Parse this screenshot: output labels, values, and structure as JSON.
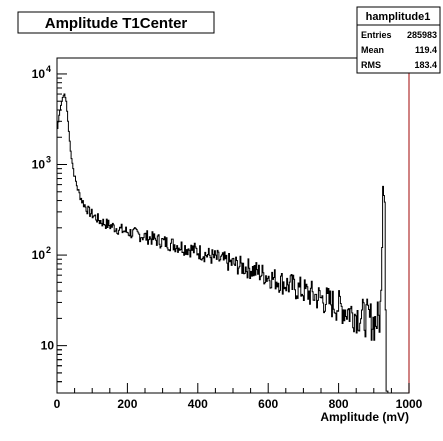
{
  "colors": {
    "background": "#ffffff",
    "frame": "#000000",
    "histogram": "#000000",
    "axis_frame_right": "#b03030"
  },
  "chart_data": {
    "type": "line",
    "title": "Amplitude T1Center",
    "xlabel": "Amplitude (mV)",
    "ylabel": "",
    "xlim": [
      0,
      1000
    ],
    "ylim": [
      3,
      15000
    ],
    "y_scale": "log",
    "grid": false,
    "legend": "none",
    "x_ticks": [
      {
        "value": 0,
        "label": "0"
      },
      {
        "value": 200,
        "label": "200"
      },
      {
        "value": 400,
        "label": "400"
      },
      {
        "value": 600,
        "label": "600"
      },
      {
        "value": 800,
        "label": "800"
      },
      {
        "value": 1000,
        "label": "1000"
      }
    ],
    "y_ticks": [
      {
        "value": 10,
        "base": "10",
        "exp": ""
      },
      {
        "value": 100,
        "base": "10",
        "exp": "2"
      },
      {
        "value": 1000,
        "base": "10",
        "exp": "3"
      },
      {
        "value": 10000,
        "base": "10",
        "exp": "4"
      }
    ],
    "stats_box": {
      "name": "hamplitude1",
      "rows": [
        {
          "label": "Entries",
          "value": "285983"
        },
        {
          "label": "Mean",
          "value": "119.4"
        },
        {
          "label": "RMS",
          "value": "183.4"
        }
      ]
    },
    "series": [
      {
        "x": [
          0,
          5,
          10,
          15,
          20,
          25,
          30,
          35,
          40,
          45,
          50,
          60,
          70,
          80,
          90,
          100,
          120,
          140,
          160,
          180,
          200,
          250,
          300,
          350,
          400,
          450,
          500,
          550,
          600,
          650,
          700,
          750,
          800,
          850,
          880,
          900,
          915,
          920,
          925,
          930,
          935,
          940
        ],
        "y": [
          2500,
          3500,
          4500,
          5500,
          6000,
          5000,
          3000,
          1800,
          1200,
          900,
          700,
          500,
          400,
          340,
          300,
          280,
          240,
          220,
          205,
          190,
          180,
          160,
          140,
          125,
          110,
          92,
          80,
          70,
          58,
          48,
          40,
          33,
          27,
          22,
          20,
          18,
          20,
          35,
          600,
          400,
          3,
          3
        ]
      }
    ]
  }
}
